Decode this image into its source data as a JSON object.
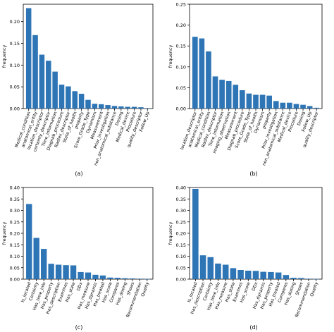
{
  "chart_data": [
    {
      "type": "bar",
      "panel_label": "(a)",
      "ylabel": "frequency",
      "ylim": [
        0,
        0.24
      ],
      "yticks": [
        "0.00",
        "0.05",
        "0.10",
        "0.15",
        "0.20"
      ],
      "ytick_values": [
        0,
        0.05,
        0.1,
        0.15,
        0.2
      ],
      "bar_color": "#2e75b6",
      "categories": [
        "Medical_condition",
        "anatomical_entity",
        "location_descriptor",
        "certainty_descriptor",
        "Time_information",
        "Diagnab_procedure",
        "Radlex_descriptor",
        "State_of_health",
        "property",
        "Score_Grade_Type",
        "Dynamism",
        "Measurement",
        "Prior_investigation",
        "non_anatomical_substance",
        "Dosing",
        "Medical_device",
        "Procedure",
        "quality_descriptor",
        "Follow_Up"
      ],
      "values": [
        0.231,
        0.169,
        0.124,
        0.11,
        0.085,
        0.055,
        0.051,
        0.04,
        0.034,
        0.02,
        0.011,
        0.01,
        0.008,
        0.006,
        0.005,
        0.004,
        0.004,
        0.003,
        0.001
      ]
    },
    {
      "type": "bar",
      "panel_label": "(b)",
      "ylabel": "frequency",
      "ylim": [
        0,
        0.25
      ],
      "yticks": [
        "0.00",
        "0.05",
        "0.10",
        "0.15",
        "0.20",
        "0.25"
      ],
      "ytick_values": [
        0,
        0.05,
        0.1,
        0.15,
        0.2,
        0.25
      ],
      "bar_color": "#2e75b6",
      "categories": [
        "location_descriptor",
        "anatomical_entity",
        "Medical_condition",
        "Radlex_descriptor",
        "Time_information",
        "imaging_observation",
        "Measurement",
        "Diagnab_procedure",
        "Score_Grade_Type",
        "State_of_health",
        "Dynamism",
        "property",
        "Prior_investigation",
        "non_anatomical_substance",
        "Medical_device",
        "Procedure",
        "Dosing",
        "Follow_Up",
        "quality_descriptor"
      ],
      "values": [
        0.172,
        0.168,
        0.137,
        0.077,
        0.069,
        0.066,
        0.057,
        0.044,
        0.036,
        0.033,
        0.033,
        0.031,
        0.018,
        0.014,
        0.014,
        0.011,
        0.009,
        0.006,
        0.002
      ]
    },
    {
      "type": "bar",
      "panel_label": "(c)",
      "ylabel": "frequency",
      "ylim": [
        0,
        0.4
      ],
      "yticks": [
        "0.00",
        "0.05",
        "0.10",
        "0.15",
        "0.20",
        "0.25",
        "0.30",
        "0.35",
        "0.40"
      ],
      "ytick_values": [
        0,
        0.05,
        0.1,
        0.15,
        0.2,
        0.25,
        0.3,
        0.35,
        0.4
      ],
      "bar_color": "#2e75b6",
      "categories": [
        "Is_located",
        "Certainty",
        "Has_time_info",
        "Has_property",
        "Has_description",
        "Examines",
        "Has_state",
        "DDx",
        "Has_measure",
        "Has_dynamic",
        "Has_treated",
        "Has_score",
        "Compares",
        "Has_dosing",
        "Shows",
        "Recommendation",
        "Quality"
      ],
      "values": [
        0.328,
        0.18,
        0.132,
        0.067,
        0.063,
        0.061,
        0.06,
        0.031,
        0.029,
        0.019,
        0.016,
        0.007,
        0.006,
        0.004,
        0.003,
        0.002,
        0.001
      ]
    },
    {
      "type": "bar",
      "panel_label": "(d)",
      "ylabel": "frequency",
      "ylim": [
        0,
        0.4
      ],
      "yticks": [
        "0.00",
        "0.05",
        "0.10",
        "0.15",
        "0.20",
        "0.25",
        "0.30",
        "0.35",
        "0.40"
      ],
      "ytick_values": [
        0,
        0.05,
        0.1,
        0.15,
        0.2,
        0.25,
        0.3,
        0.35,
        0.4
      ],
      "bar_color": "#2e75b6",
      "categories": [
        "Is_located",
        "Has_description",
        "Certainty",
        "Has_time_info",
        "Has_measure",
        "Has_state",
        "Examines",
        "Has_score",
        "DDx",
        "Has_dynamic",
        "Has_property",
        "Has_treated",
        "Compares",
        "Has_dosing",
        "Shows",
        "Recommendation",
        "Quality"
      ],
      "values": [
        0.394,
        0.104,
        0.096,
        0.068,
        0.063,
        0.048,
        0.04,
        0.037,
        0.036,
        0.032,
        0.031,
        0.029,
        0.018,
        0.006,
        0.005,
        0.002,
        0.001
      ]
    }
  ]
}
